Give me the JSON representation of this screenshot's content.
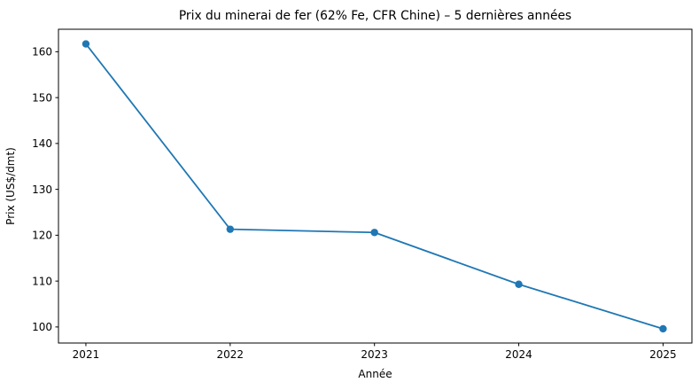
{
  "chart_data": {
    "type": "line",
    "title": "Prix du minerai de fer (62% Fe, CFR Chine) – 5 dernières années",
    "xlabel": "Année",
    "ylabel": "Prix (US$/dmt)",
    "x": [
      2021,
      2022,
      2023,
      2024,
      2025
    ],
    "x_tick_labels": [
      "2021",
      "2022",
      "2023",
      "2024",
      "2025"
    ],
    "values": [
      161.7,
      121.3,
      120.6,
      109.3,
      99.6
    ],
    "yticks": [
      100,
      110,
      120,
      130,
      140,
      150,
      160
    ],
    "xlim": [
      2020.81,
      2025.2
    ],
    "ylim": [
      96.5,
      164.9
    ],
    "grid": false,
    "legend_position": "none",
    "line_color": "#1f77b4",
    "marker": "o",
    "spine_color": "#000000",
    "background_color": "#ffffff"
  }
}
